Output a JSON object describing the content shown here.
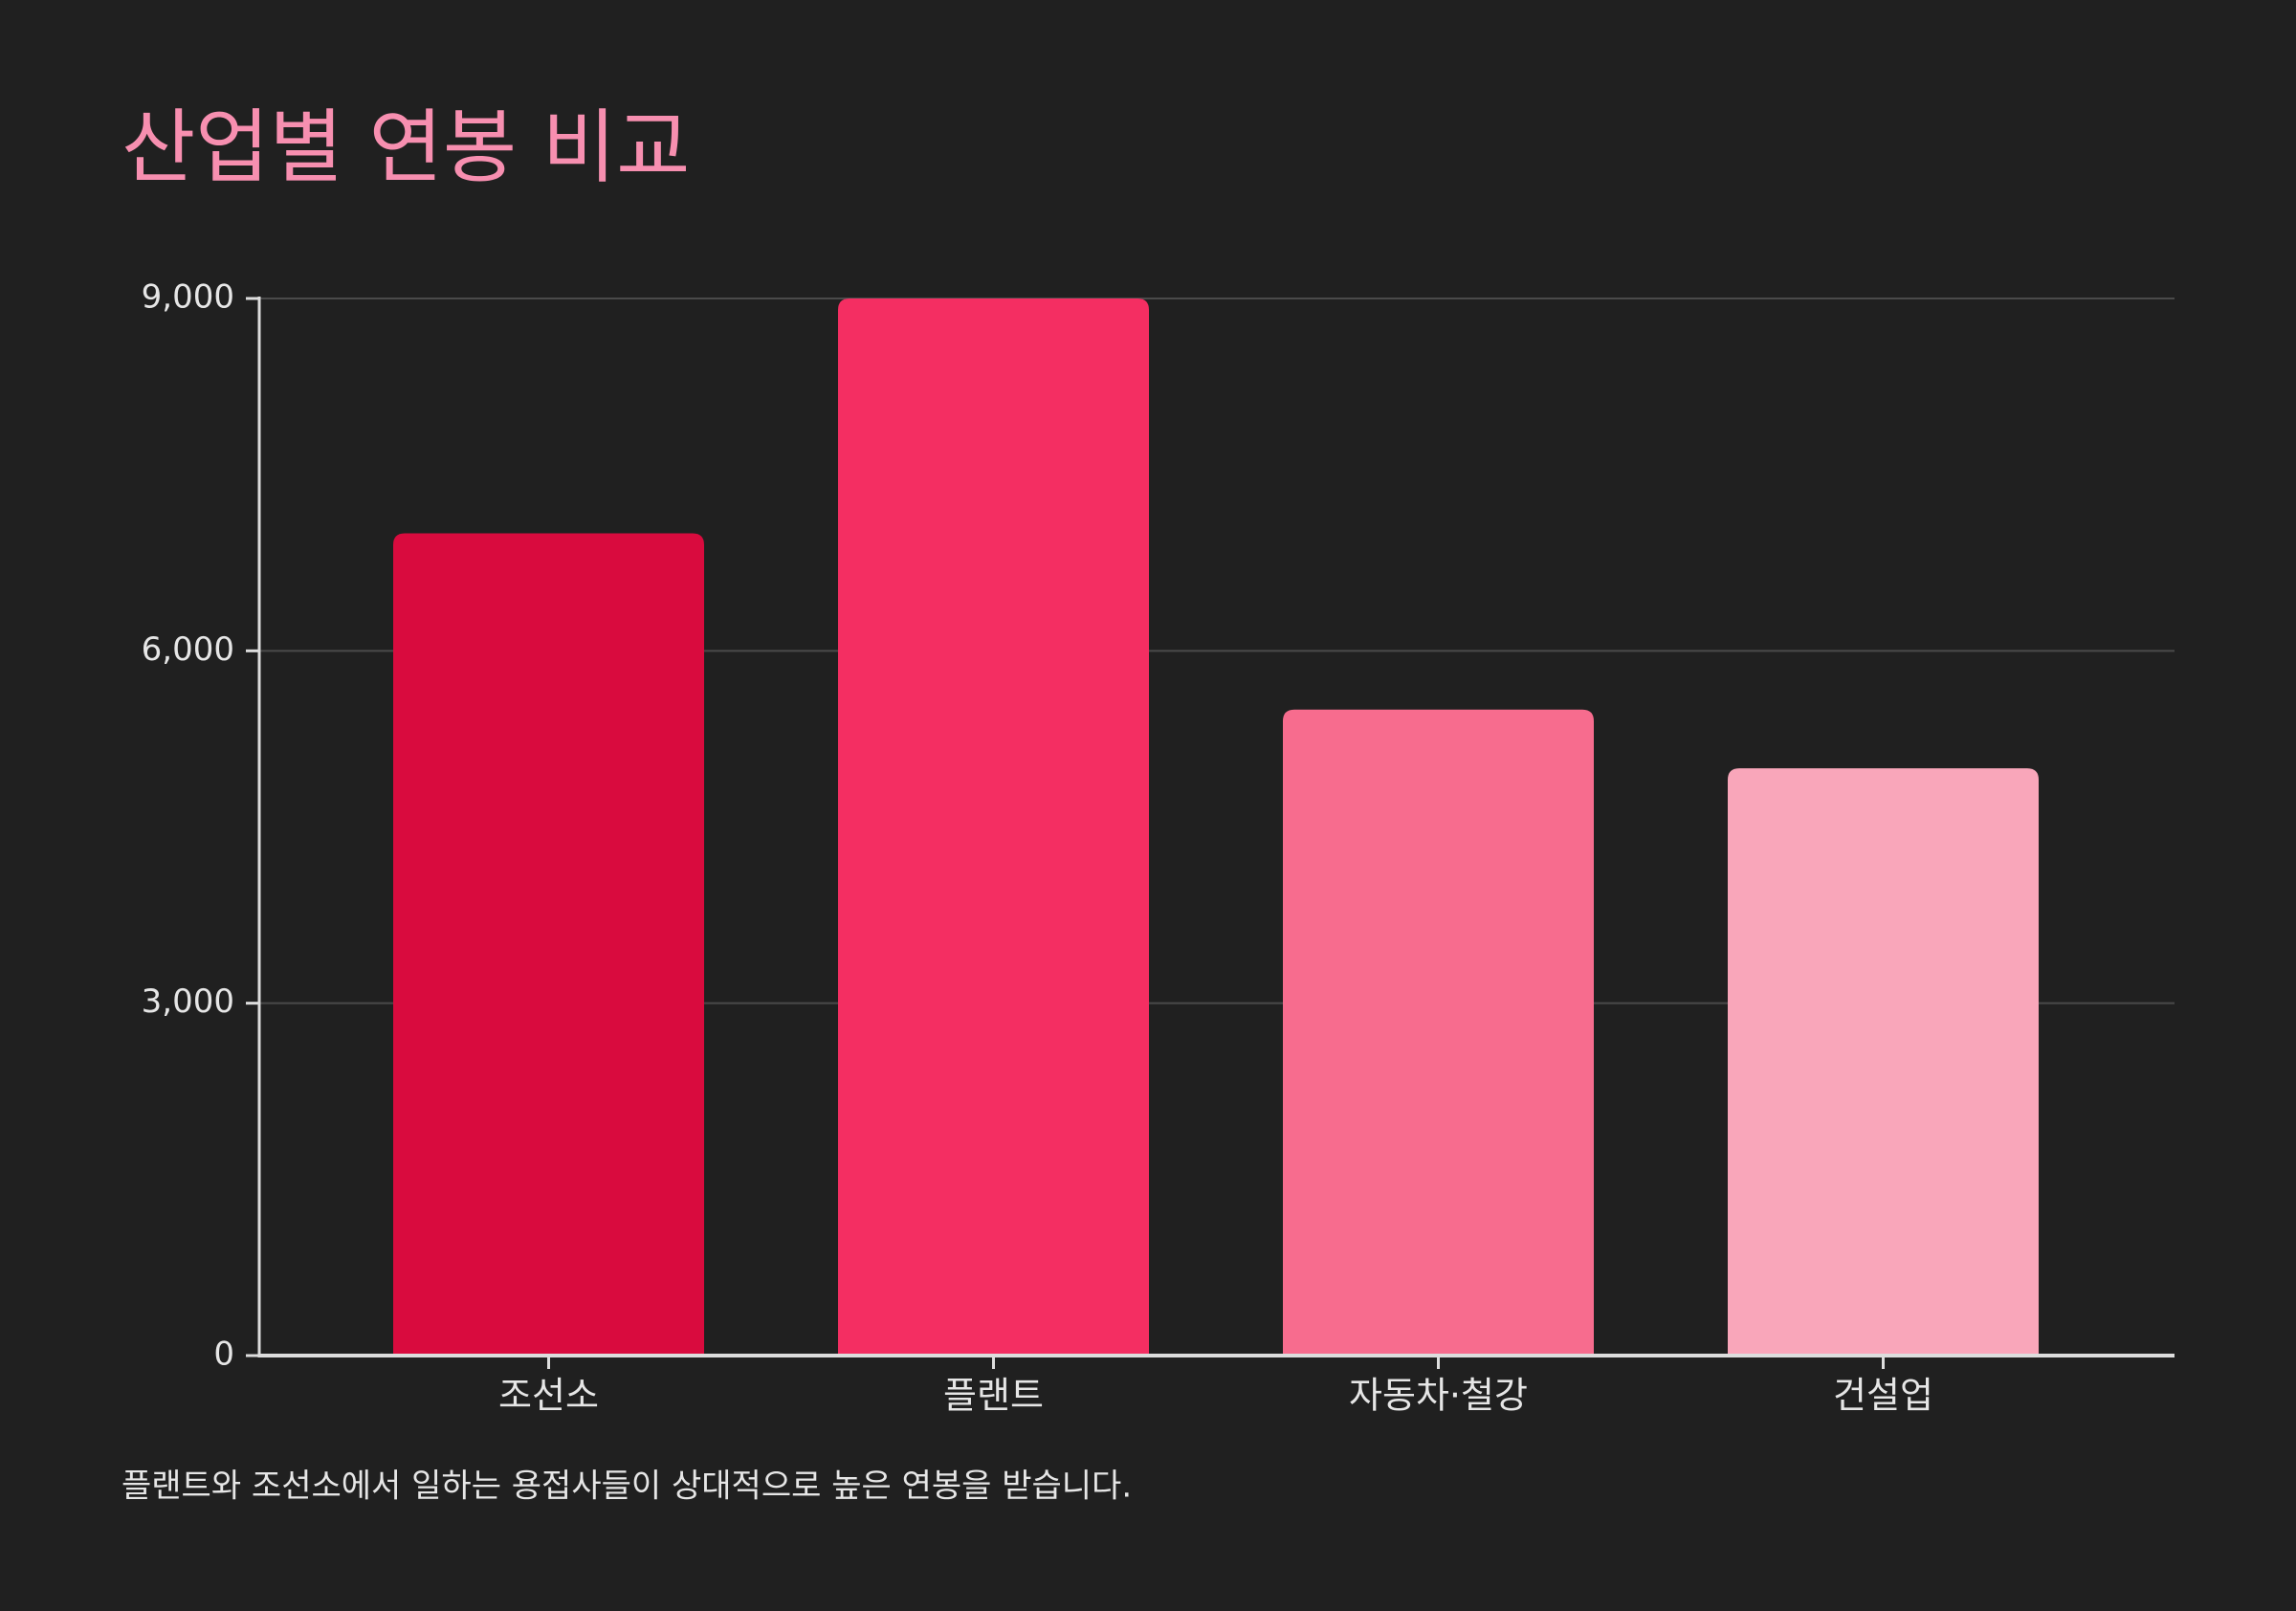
{
  "chart_data": {
    "type": "bar",
    "title": "산업별 연봉 비교",
    "categories": [
      "조선소",
      "플랜트",
      "자동차·철강",
      "건설업"
    ],
    "values": [
      7000,
      9000,
      5500,
      5000
    ],
    "colors": [
      "#d90b3e",
      "#f42e62",
      "#f76c8e",
      "#f9a6ba"
    ],
    "ylim": [
      0,
      9000
    ],
    "yticks": [
      {
        "value": 0,
        "label": "0"
      },
      {
        "value": 3000,
        "label": "3,000"
      },
      {
        "value": 6000,
        "label": "6,000"
      },
      {
        "value": 9000,
        "label": "9,000"
      }
    ],
    "grid": true,
    "caption": "플랜트와 조선소에서 일하는 용접사들이 상대적으로 높은 연봉을 받습니다."
  }
}
